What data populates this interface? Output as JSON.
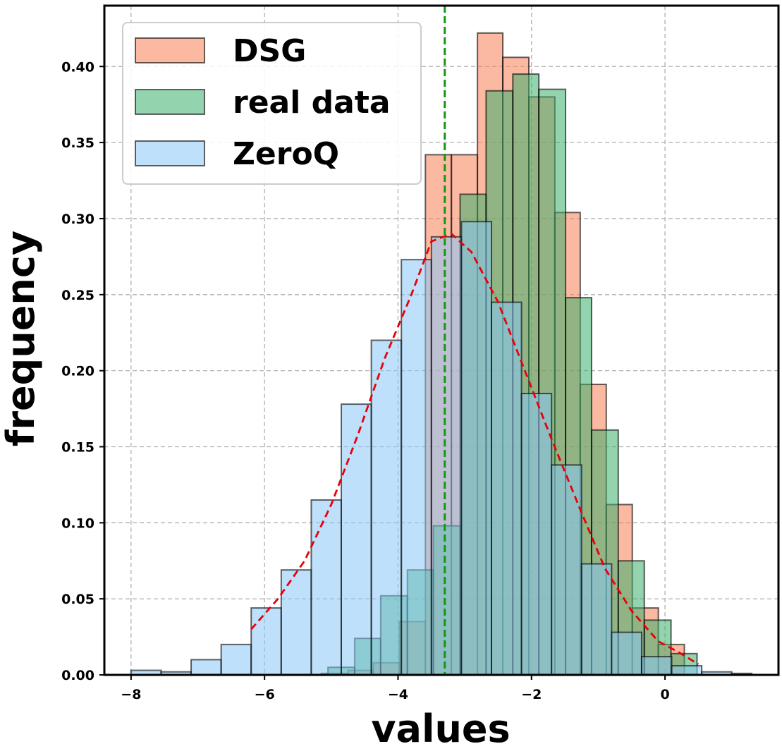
{
  "chart_data": {
    "type": "bar",
    "subtype": "overlapping-histogram",
    "title": "",
    "xlabel": "values",
    "ylabel": "frequency",
    "xlim": [
      -8.4,
      1.7
    ],
    "ylim": [
      0,
      0.44
    ],
    "xticks": [
      -8,
      -6,
      -4,
      -2,
      0
    ],
    "xtick_labels": [
      "−8",
      "−6",
      "−4",
      "−2",
      "0"
    ],
    "yticks": [
      0.0,
      0.05,
      0.1,
      0.15,
      0.2,
      0.25,
      0.3,
      0.35,
      0.4
    ],
    "ytick_labels": [
      "0.00",
      "0.05",
      "0.10",
      "0.15",
      "0.20",
      "0.25",
      "0.30",
      "0.35",
      "0.40"
    ],
    "grid": true,
    "legend_position": "top-left",
    "series": [
      {
        "name": "DSG",
        "color": "#fa8055",
        "bins": [
          [
            -5.15,
            -4.75,
            0.001
          ],
          [
            -4.75,
            -4.37,
            0.003
          ],
          [
            -4.37,
            -3.98,
            0.008
          ],
          [
            -3.98,
            -3.59,
            0.035
          ],
          [
            -3.59,
            -3.2,
            0.342
          ],
          [
            -3.2,
            -2.81,
            0.342
          ],
          [
            -2.81,
            -2.43,
            0.422
          ],
          [
            -2.43,
            -2.04,
            0.406
          ],
          [
            -2.04,
            -1.65,
            0.38
          ],
          [
            -1.65,
            -1.27,
            0.304
          ],
          [
            -1.27,
            -0.88,
            0.191
          ],
          [
            -0.88,
            -0.49,
            0.112
          ],
          [
            -0.49,
            -0.1,
            0.044
          ],
          [
            -0.1,
            0.29,
            0.02
          ]
        ]
      },
      {
        "name": "real data",
        "color": "#3aaf6b",
        "bins": [
          [
            -5.05,
            -4.65,
            0.005
          ],
          [
            -4.65,
            -4.26,
            0.024
          ],
          [
            -4.26,
            -3.86,
            0.052
          ],
          [
            -3.86,
            -3.47,
            0.069
          ],
          [
            -3.47,
            -3.07,
            0.098
          ],
          [
            -3.07,
            -2.68,
            0.316
          ],
          [
            -2.68,
            -2.28,
            0.384
          ],
          [
            -2.28,
            -1.89,
            0.395
          ],
          [
            -1.89,
            -1.49,
            0.385
          ],
          [
            -1.49,
            -1.1,
            0.248
          ],
          [
            -1.1,
            -0.7,
            0.161
          ],
          [
            -0.7,
            -0.31,
            0.075
          ],
          [
            -0.31,
            0.09,
            0.036
          ],
          [
            0.09,
            0.48,
            0.014
          ]
        ]
      },
      {
        "name": "ZeroQ",
        "color": "#88c6f5",
        "bins": [
          [
            -8.0,
            -7.55,
            0.003
          ],
          [
            -7.55,
            -7.1,
            0.002
          ],
          [
            -7.1,
            -6.65,
            0.01
          ],
          [
            -6.65,
            -6.2,
            0.02
          ],
          [
            -6.2,
            -5.75,
            0.044
          ],
          [
            -5.75,
            -5.3,
            0.069
          ],
          [
            -5.3,
            -4.85,
            0.115
          ],
          [
            -4.85,
            -4.4,
            0.178
          ],
          [
            -4.4,
            -3.95,
            0.22
          ],
          [
            -3.95,
            -3.5,
            0.273
          ],
          [
            -3.5,
            -3.05,
            0.288
          ],
          [
            -3.05,
            -2.6,
            0.298
          ],
          [
            -2.6,
            -2.15,
            0.245
          ],
          [
            -2.15,
            -1.7,
            0.185
          ],
          [
            -1.7,
            -1.25,
            0.138
          ],
          [
            -1.25,
            -0.8,
            0.073
          ],
          [
            -0.8,
            -0.35,
            0.028
          ],
          [
            -0.35,
            0.1,
            0.012
          ],
          [
            0.1,
            0.55,
            0.006
          ],
          [
            0.55,
            1.0,
            0.002
          ],
          [
            1.0,
            1.3,
            0.001
          ]
        ]
      }
    ],
    "fitted_curve": {
      "color": "#e8000b",
      "style": "dashed",
      "points": [
        [
          -6.2,
          0.03
        ],
        [
          -5.8,
          0.05
        ],
        [
          -5.4,
          0.075
        ],
        [
          -5.0,
          0.112
        ],
        [
          -4.6,
          0.158
        ],
        [
          -4.2,
          0.208
        ],
        [
          -3.8,
          0.25
        ],
        [
          -3.5,
          0.285
        ],
        [
          -3.2,
          0.29
        ],
        [
          -2.9,
          0.278
        ],
        [
          -2.5,
          0.245
        ],
        [
          -2.1,
          0.2
        ],
        [
          -1.7,
          0.155
        ],
        [
          -1.3,
          0.112
        ],
        [
          -0.9,
          0.07
        ],
        [
          -0.5,
          0.042
        ],
        [
          -0.1,
          0.022
        ],
        [
          0.2,
          0.015
        ],
        [
          0.5,
          0.007
        ]
      ]
    },
    "vertical_line": {
      "x": -3.3,
      "color": "#119911",
      "style": "dashed"
    }
  }
}
